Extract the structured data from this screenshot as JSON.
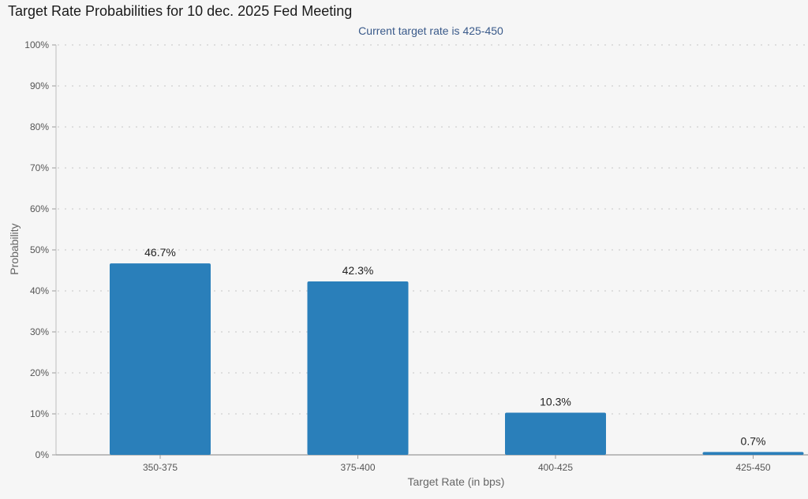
{
  "chart_data": {
    "type": "bar",
    "title": "Target Rate Probabilities for 10 dec. 2025 Fed Meeting",
    "subtitle": "Current target rate is 425-450",
    "xlabel": "Target Rate (in bps)",
    "ylabel": "Probability",
    "categories": [
      "350-375",
      "375-400",
      "400-425",
      "425-450"
    ],
    "values": [
      46.7,
      42.3,
      10.3,
      0.7
    ],
    "value_labels": [
      "46.7%",
      "42.3%",
      "10.3%",
      "0.7%"
    ],
    "ylim": [
      0,
      100
    ],
    "yticks": [
      0,
      10,
      20,
      30,
      40,
      50,
      60,
      70,
      80,
      90,
      100
    ],
    "ytick_labels": [
      "0%",
      "10%",
      "20%",
      "30%",
      "40%",
      "50%",
      "60%",
      "70%",
      "80%",
      "90%",
      "100%"
    ],
    "grid": true,
    "bar_color": "#2a7fba"
  }
}
